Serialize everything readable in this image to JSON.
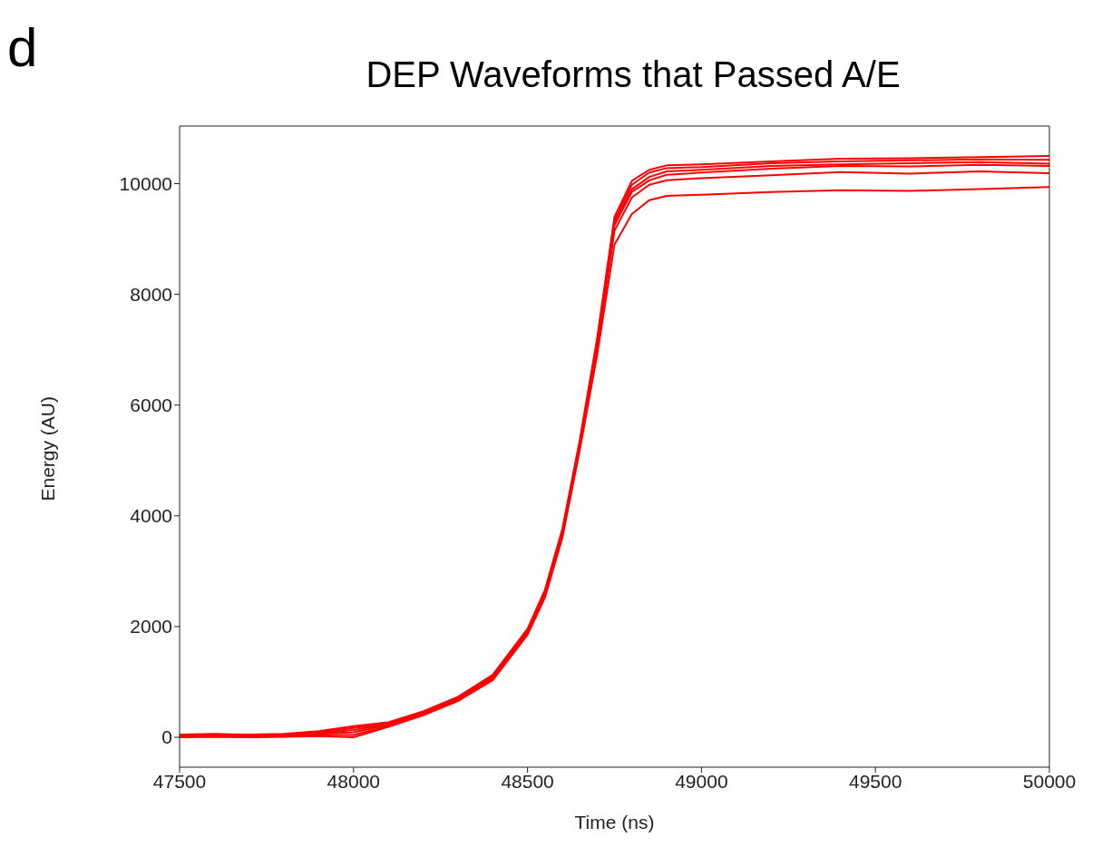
{
  "chart_data": {
    "type": "line",
    "title": "DEP Waveforms that Passed A/E",
    "xlabel": "Time (ns)",
    "ylabel": "Energy (AU)",
    "annotations": [
      "d"
    ],
    "x": [
      47500,
      47600,
      47700,
      47800,
      47900,
      48000,
      48100,
      48200,
      48300,
      48400,
      48500,
      48550,
      48600,
      48650,
      48700,
      48750,
      48800,
      48850,
      48900,
      49000,
      49200,
      49400,
      49600,
      49800,
      50000
    ],
    "series": [
      {
        "color": "#ff0000",
        "values": [
          50,
          60,
          50,
          60,
          110,
          200,
          270,
          470,
          730,
          1130,
          1960,
          2660,
          3760,
          5360,
          7200,
          9400,
          10050,
          10250,
          10330,
          10350,
          10400,
          10450,
          10460,
          10480,
          10500
        ]
      },
      {
        "color": "#ff0000",
        "values": [
          40,
          50,
          40,
          50,
          90,
          170,
          250,
          455,
          715,
          1110,
          1935,
          2630,
          3720,
          5320,
          7150,
          9350,
          9980,
          10200,
          10280,
          10300,
          10370,
          10400,
          10420,
          10440,
          10430
        ]
      },
      {
        "color": "#ff0000",
        "values": [
          30,
          40,
          30,
          40,
          75,
          130,
          235,
          440,
          700,
          1090,
          1910,
          2600,
          3690,
          5290,
          7100,
          9300,
          9900,
          10120,
          10220,
          10250,
          10320,
          10350,
          10370,
          10390,
          10360
        ]
      },
      {
        "color": "#ff0000",
        "values": [
          20,
          30,
          20,
          30,
          60,
          90,
          220,
          425,
          685,
          1070,
          1890,
          2575,
          3660,
          5260,
          7060,
          9250,
          9850,
          10060,
          10160,
          10200,
          10270,
          10320,
          10310,
          10340,
          10320
        ]
      },
      {
        "color": "#ff0000",
        "values": [
          10,
          20,
          10,
          20,
          40,
          40,
          205,
          410,
          670,
          1050,
          1870,
          2550,
          3630,
          5230,
          7020,
          9150,
          9750,
          9980,
          10060,
          10100,
          10150,
          10210,
          10180,
          10220,
          10190
        ]
      },
      {
        "color": "#ff0000",
        "values": [
          0,
          10,
          0,
          10,
          20,
          0,
          190,
          395,
          655,
          1030,
          1850,
          2520,
          3600,
          5180,
          6900,
          8900,
          9450,
          9700,
          9780,
          9800,
          9850,
          9880,
          9870,
          9900,
          9940
        ]
      }
    ],
    "xlim": [
      47500,
      50000
    ],
    "xticks": [
      47500,
      48000,
      48500,
      49000,
      49500,
      50000
    ],
    "ylim": [
      -540,
      11040
    ],
    "yticks": [
      0,
      2000,
      4000,
      6000,
      8000,
      10000
    ],
    "grid": false,
    "legend": false,
    "marker": "none",
    "line_style": "solid"
  }
}
